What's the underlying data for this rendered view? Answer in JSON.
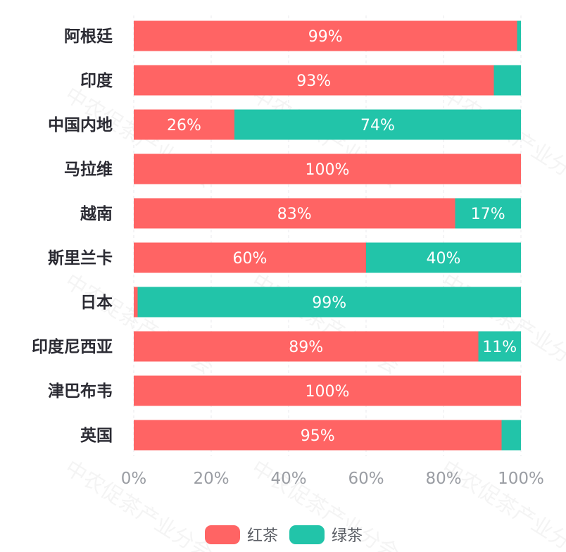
{
  "chart_data": {
    "type": "bar",
    "orientation": "horizontal",
    "stacked": "percent",
    "categories": [
      "阿根廷",
      "印度",
      "中国内地",
      "马拉维",
      "越南",
      "斯里兰卡",
      "日本",
      "印度尼西亚",
      "津巴布韦",
      "英国"
    ],
    "series": [
      {
        "name": "红茶",
        "color": "#ff6464",
        "values": [
          99,
          93,
          26,
          100,
          83,
          60,
          1,
          89,
          100,
          95
        ]
      },
      {
        "name": "绿茶",
        "color": "#22c4a9",
        "values": [
          1,
          7,
          74,
          0,
          17,
          40,
          99,
          11,
          0,
          5
        ]
      }
    ],
    "data_labels": {
      "红茶": [
        "99%",
        "93%",
        "26%",
        "100%",
        "83%",
        "60%",
        "",
        "89%",
        "100%",
        "95%"
      ],
      "绿茶": [
        "",
        "",
        "74%",
        "",
        "17%",
        "40%",
        "99%",
        "11%",
        "",
        ""
      ]
    },
    "xlim": [
      0,
      100
    ],
    "x_ticks": [
      "0%",
      "20%",
      "40%",
      "60%",
      "80%",
      "100%"
    ],
    "grid": true,
    "legend_position": "bottom"
  },
  "watermark": "中农促茶产业分会"
}
